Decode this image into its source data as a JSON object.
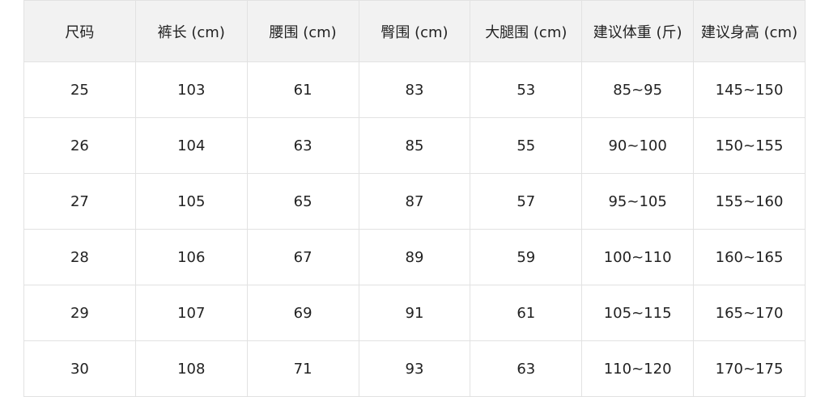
{
  "table": {
    "headers": [
      "尺码",
      "裤长 (cm)",
      "腰围 (cm)",
      "臀围 (cm)",
      "大腿围 (cm)",
      "建议体重 (斤)",
      "建议身高 (cm)"
    ],
    "rows": [
      [
        "25",
        "103",
        "61",
        "83",
        "53",
        "85~95",
        "145~150"
      ],
      [
        "26",
        "104",
        "63",
        "85",
        "55",
        "90~100",
        "150~155"
      ],
      [
        "27",
        "105",
        "65",
        "87",
        "57",
        "95~105",
        "155~160"
      ],
      [
        "28",
        "106",
        "67",
        "89",
        "59",
        "100~110",
        "160~165"
      ],
      [
        "29",
        "107",
        "69",
        "91",
        "61",
        "105~115",
        "165~170"
      ],
      [
        "30",
        "108",
        "71",
        "93",
        "63",
        "110~120",
        "170~175"
      ]
    ]
  },
  "colors": {
    "header_bg": "#f2f2f2",
    "border": "#e2e2e2",
    "text": "#222222"
  }
}
